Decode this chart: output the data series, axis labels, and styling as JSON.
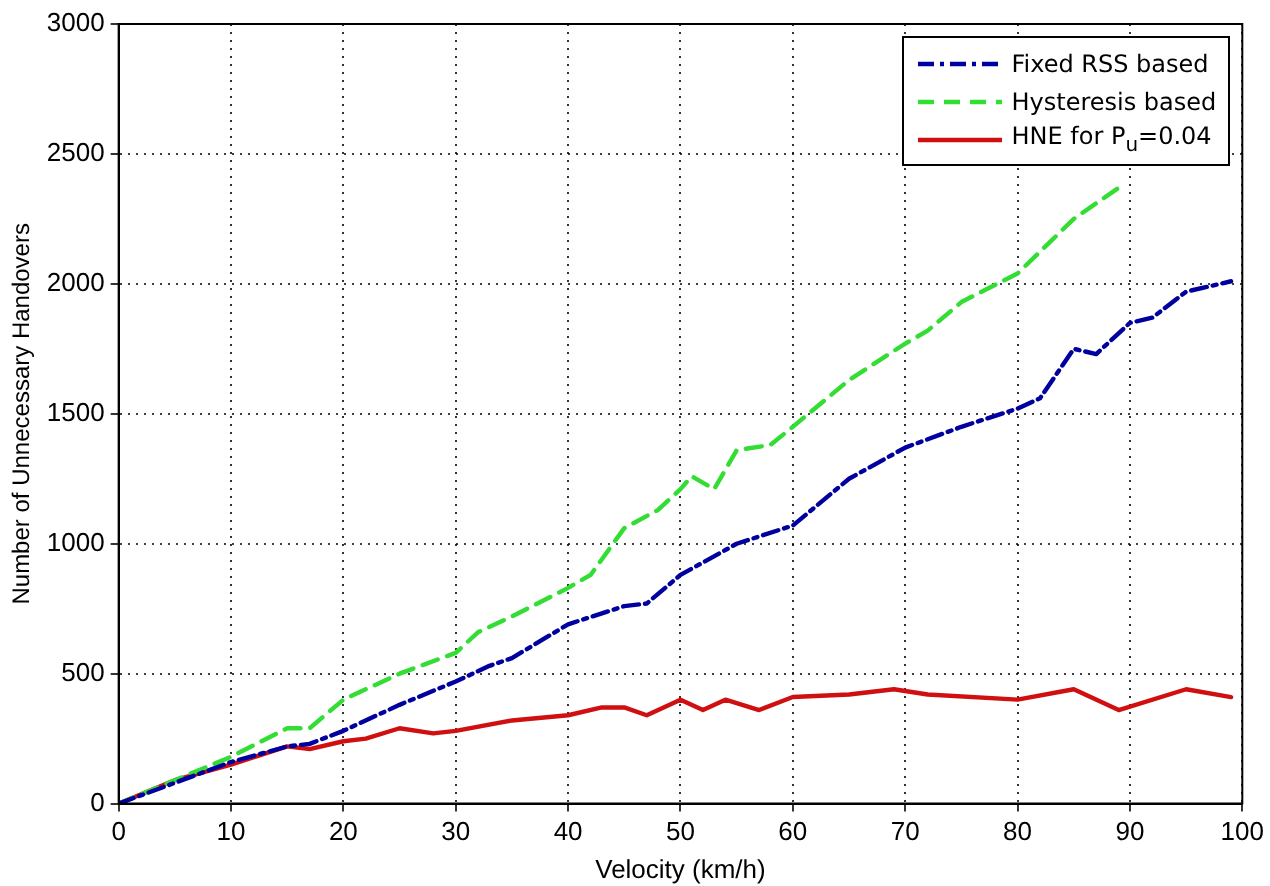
{
  "chart_data": {
    "type": "line",
    "xlabel": "Velocity (km/h)",
    "ylabel": "Number of Unnecessary Handovers",
    "xlim": [
      0,
      100
    ],
    "xticks": [
      0,
      10,
      20,
      30,
      40,
      50,
      60,
      70,
      80,
      90,
      100
    ],
    "ylim": [
      0,
      3000
    ],
    "yticks": [
      0,
      500,
      1000,
      1500,
      2000,
      2500,
      3000
    ],
    "grid": true,
    "legend": "top right",
    "marker": "none",
    "series": [
      {
        "name": "Fixed RSS based",
        "color": "#0000a0",
        "line_style": "dashdot",
        "x": [
          0,
          5,
          10,
          15,
          17,
          20,
          25,
          30,
          33,
          35,
          40,
          45,
          47,
          50,
          55,
          60,
          65,
          70,
          75,
          80,
          82,
          85,
          87,
          90,
          92,
          95,
          99
        ],
        "values": [
          0,
          80,
          160,
          220,
          230,
          280,
          380,
          470,
          530,
          560,
          690,
          760,
          770,
          880,
          1000,
          1070,
          1250,
          1370,
          1450,
          1520,
          1560,
          1750,
          1730,
          1850,
          1870,
          1970,
          2010
        ]
      },
      {
        "name": "Hysteresis based",
        "color": "#33dd33",
        "line_style": "dashed",
        "x": [
          0,
          5,
          10,
          15,
          17,
          20,
          25,
          30,
          32,
          35,
          40,
          42,
          45,
          48,
          50,
          51,
          53,
          55,
          58,
          60,
          65,
          70,
          72,
          75,
          80,
          85,
          89
        ],
        "values": [
          0,
          90,
          180,
          290,
          290,
          400,
          500,
          580,
          660,
          720,
          830,
          880,
          1060,
          1130,
          1210,
          1260,
          1210,
          1360,
          1380,
          1450,
          1630,
          1770,
          1820,
          1930,
          2040,
          2250,
          2370
        ]
      },
      {
        "name": "HNE for P$_{u}$=0.04",
        "color": "#d01010",
        "line_style": "solid",
        "x": [
          0,
          5,
          10,
          15,
          17,
          20,
          22,
          25,
          28,
          30,
          35,
          40,
          43,
          45,
          47,
          50,
          52,
          54,
          57,
          60,
          65,
          69,
          72,
          80,
          85,
          89,
          95,
          99
        ],
        "values": [
          0,
          90,
          150,
          220,
          210,
          240,
          250,
          290,
          270,
          280,
          320,
          340,
          370,
          370,
          340,
          400,
          360,
          400,
          360,
          410,
          420,
          440,
          420,
          400,
          440,
          360,
          440,
          410
        ]
      }
    ]
  }
}
